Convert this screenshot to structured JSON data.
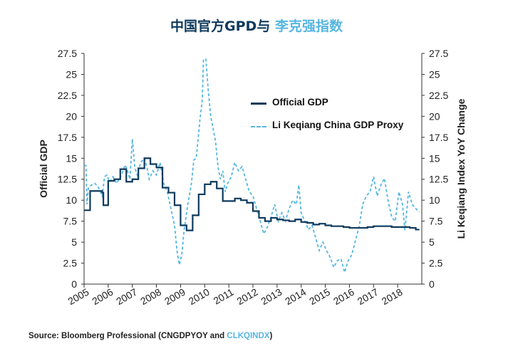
{
  "title": {
    "part1": "中国官方GPD与",
    "part2": "李克强指数"
  },
  "source": {
    "prefix": "Source: Bloomberg Professional (CNGDPYOY and ",
    "highlight": "CLKQINDX",
    "suffix": ")"
  },
  "colors": {
    "official": "#0e3a5c",
    "proxy": "#56b6e0",
    "axis": "#333333"
  },
  "chart_data": {
    "type": "line",
    "ylabel_left": "Official GDP",
    "ylabel_right": "Li Keqiang Index YoY Change",
    "ylim": [
      0,
      27.5
    ],
    "yticks": [
      0,
      2.5,
      5,
      7.5,
      10,
      12.5,
      15,
      17.5,
      20,
      22.5,
      25,
      27.5
    ],
    "xlim": [
      2005,
      2019
    ],
    "xticks": [
      "2005",
      "2006",
      "2007",
      "2008",
      "2009",
      "2010",
      "2011",
      "2012",
      "2013",
      "2014",
      "2015",
      "2016",
      "2017",
      "2018"
    ],
    "legend_position": "upper-right",
    "series": [
      {
        "name": "Official GDP",
        "style": "solid-step",
        "points": [
          [
            2005.0,
            8.8
          ],
          [
            2005.25,
            11.1
          ],
          [
            2005.75,
            10.9
          ],
          [
            2005.8,
            9.4
          ],
          [
            2006.0,
            12.3
          ],
          [
            2006.25,
            12.5
          ],
          [
            2006.5,
            13.7
          ],
          [
            2006.75,
            12.2
          ],
          [
            2007.0,
            12.5
          ],
          [
            2007.25,
            13.8
          ],
          [
            2007.5,
            15.0
          ],
          [
            2007.75,
            14.3
          ],
          [
            2008.0,
            13.9
          ],
          [
            2008.25,
            11.5
          ],
          [
            2008.5,
            10.9
          ],
          [
            2008.75,
            9.4
          ],
          [
            2009.0,
            7.0
          ],
          [
            2009.25,
            6.4
          ],
          [
            2009.5,
            8.2
          ],
          [
            2009.75,
            10.7
          ],
          [
            2010.0,
            11.9
          ],
          [
            2010.25,
            12.2
          ],
          [
            2010.5,
            11.4
          ],
          [
            2010.75,
            9.9
          ],
          [
            2011.0,
            9.9
          ],
          [
            2011.25,
            10.2
          ],
          [
            2011.5,
            10.0
          ],
          [
            2011.75,
            9.7
          ],
          [
            2012.0,
            8.7
          ],
          [
            2012.25,
            7.9
          ],
          [
            2012.5,
            7.5
          ],
          [
            2012.75,
            7.9
          ],
          [
            2013.0,
            7.7
          ],
          [
            2013.25,
            7.6
          ],
          [
            2013.5,
            7.5
          ],
          [
            2013.75,
            7.7
          ],
          [
            2014.0,
            7.4
          ],
          [
            2014.25,
            7.3
          ],
          [
            2014.5,
            7.1
          ],
          [
            2014.75,
            7.2
          ],
          [
            2015.0,
            7.0
          ],
          [
            2015.25,
            6.9
          ],
          [
            2015.5,
            6.9
          ],
          [
            2015.75,
            6.8
          ],
          [
            2016.0,
            6.7
          ],
          [
            2016.75,
            6.8
          ],
          [
            2017.0,
            6.9
          ],
          [
            2017.75,
            6.8
          ],
          [
            2018.0,
            6.8
          ],
          [
            2018.5,
            6.7
          ],
          [
            2018.75,
            6.5
          ],
          [
            2018.9,
            6.5
          ]
        ]
      },
      {
        "name": "Li Keqiang China GDP Proxy",
        "style": "dashed",
        "points": [
          [
            2005.0,
            14.2
          ],
          [
            2005.08,
            14.1
          ],
          [
            2005.12,
            9.5
          ],
          [
            2005.18,
            11.5
          ],
          [
            2005.3,
            11.8
          ],
          [
            2005.45,
            12.0
          ],
          [
            2005.6,
            11.5
          ],
          [
            2005.75,
            10.5
          ],
          [
            2005.85,
            12.8
          ],
          [
            2005.95,
            13.0
          ],
          [
            2006.05,
            12.2
          ],
          [
            2006.2,
            12.8
          ],
          [
            2006.35,
            12.0
          ],
          [
            2006.55,
            13.0
          ],
          [
            2006.7,
            14.2
          ],
          [
            2006.8,
            13.5
          ],
          [
            2006.9,
            12.5
          ],
          [
            2007.0,
            17.3
          ],
          [
            2007.1,
            14.0
          ],
          [
            2007.2,
            13.0
          ],
          [
            2007.35,
            14.5
          ],
          [
            2007.5,
            15.0
          ],
          [
            2007.6,
            14.0
          ],
          [
            2007.7,
            12.5
          ],
          [
            2007.85,
            13.5
          ],
          [
            2008.0,
            13.0
          ],
          [
            2008.15,
            14.5
          ],
          [
            2008.3,
            12.0
          ],
          [
            2008.45,
            11.0
          ],
          [
            2008.6,
            9.0
          ],
          [
            2008.75,
            7.0
          ],
          [
            2008.85,
            4.0
          ],
          [
            2008.95,
            2.3
          ],
          [
            2009.05,
            3.5
          ],
          [
            2009.15,
            6.5
          ],
          [
            2009.3,
            9.5
          ],
          [
            2009.45,
            12.0
          ],
          [
            2009.55,
            14.8
          ],
          [
            2009.65,
            15.0
          ],
          [
            2009.8,
            19.5
          ],
          [
            2009.9,
            22.0
          ],
          [
            2009.95,
            26.8
          ],
          [
            2010.05,
            26.8
          ],
          [
            2010.15,
            23.0
          ],
          [
            2010.25,
            20.0
          ],
          [
            2010.35,
            18.5
          ],
          [
            2010.45,
            17.0
          ],
          [
            2010.55,
            14.0
          ],
          [
            2010.65,
            12.5
          ],
          [
            2010.75,
            13.5
          ],
          [
            2010.85,
            11.0
          ],
          [
            2010.95,
            12.0
          ],
          [
            2011.1,
            12.8
          ],
          [
            2011.25,
            14.5
          ],
          [
            2011.4,
            13.5
          ],
          [
            2011.55,
            14.0
          ],
          [
            2011.7,
            12.5
          ],
          [
            2011.85,
            11.0
          ],
          [
            2012.0,
            10.5
          ],
          [
            2012.15,
            9.0
          ],
          [
            2012.3,
            7.5
          ],
          [
            2012.45,
            6.0
          ],
          [
            2012.6,
            6.8
          ],
          [
            2012.75,
            8.0
          ],
          [
            2012.9,
            9.5
          ],
          [
            2013.05,
            7.5
          ],
          [
            2013.2,
            8.5
          ],
          [
            2013.35,
            7.5
          ],
          [
            2013.5,
            9.0
          ],
          [
            2013.65,
            10.0
          ],
          [
            2013.8,
            9.5
          ],
          [
            2013.9,
            11.8
          ],
          [
            2014.0,
            8.5
          ],
          [
            2014.15,
            7.5
          ],
          [
            2014.3,
            6.5
          ],
          [
            2014.45,
            7.0
          ],
          [
            2014.6,
            5.5
          ],
          [
            2014.75,
            4.0
          ],
          [
            2014.9,
            5.0
          ],
          [
            2015.05,
            4.0
          ],
          [
            2015.2,
            3.2
          ],
          [
            2015.35,
            2.0
          ],
          [
            2015.5,
            2.8
          ],
          [
            2015.65,
            3.0
          ],
          [
            2015.8,
            1.4
          ],
          [
            2015.95,
            2.8
          ],
          [
            2016.1,
            3.5
          ],
          [
            2016.25,
            5.2
          ],
          [
            2016.4,
            6.8
          ],
          [
            2016.55,
            9.5
          ],
          [
            2016.7,
            10.5
          ],
          [
            2016.85,
            11.0
          ],
          [
            2017.0,
            12.8
          ],
          [
            2017.15,
            10.5
          ],
          [
            2017.3,
            11.8
          ],
          [
            2017.45,
            12.6
          ],
          [
            2017.6,
            10.0
          ],
          [
            2017.75,
            8.0
          ],
          [
            2017.9,
            7.5
          ],
          [
            2018.05,
            11.0
          ],
          [
            2018.2,
            9.5
          ],
          [
            2018.3,
            6.4
          ],
          [
            2018.45,
            11.0
          ],
          [
            2018.6,
            9.5
          ],
          [
            2018.75,
            9.0
          ],
          [
            2018.9,
            8.6
          ]
        ]
      }
    ]
  }
}
